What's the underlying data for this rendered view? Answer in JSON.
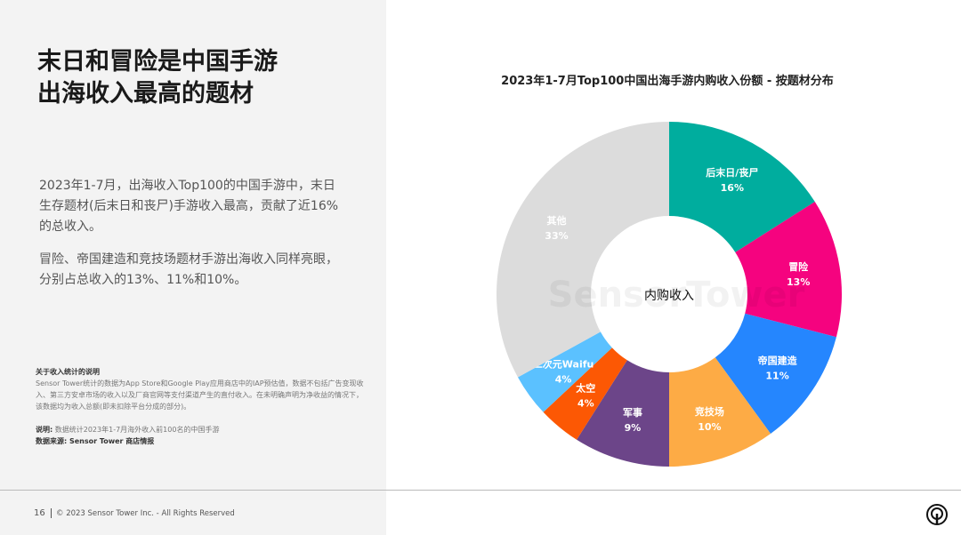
{
  "left_panel": {
    "title_line1": "末日和冒险是中国手游",
    "title_line2": "出海收入最高的题材",
    "paragraph1": "2023年1-7月，出海收入Top100的中国手游中，末日生存题材(后末日和丧尸)手游收入最高，贡献了近16%的总收入。",
    "paragraph2": "冒险、帝国建造和竞技场题材手游出海收入同样亮眼，分别占总收入的13%、11%和10%。",
    "note_heading": "关于收入统计的说明",
    "note_text": "Sensor Tower统计的数据为App Store和Google Play应用商店中的IAP预估值，数据不包括广告变现收入、第三方安卓市场的收入以及厂商官网等支付渠道产生的直付收入。在未明确声明为净收益的情况下，该数据均为收入总额(即未扣除平台分成的部分)。",
    "explain_label": "说明:",
    "explain_text": "数据统计2023年1-7月海外收入前100名的中国手游",
    "source_label": "数据来源: Sensor Tower 商店情报"
  },
  "footer": {
    "page_number": "16",
    "copyright": "© 2023 Sensor Tower Inc. - All Rights Reserved",
    "logo_icon": "sensor-tower-logo-icon"
  },
  "chart_data": {
    "type": "pie",
    "donut": true,
    "title": "2023年1-7月Top100中国出海手游内购收入份额 - 按题材分布",
    "center_label": "内购收入",
    "watermark": "SensorTower",
    "categories": [
      "后末日/丧尸",
      "冒险",
      "帝国建造",
      "竞技场",
      "军事",
      "太空",
      "二次元Waifu",
      "其他"
    ],
    "values": [
      16,
      13,
      11,
      10,
      9,
      4,
      4,
      33
    ],
    "labels": [
      "16%",
      "13%",
      "11%",
      "10%",
      "9%",
      "4%",
      "4%",
      "33%"
    ],
    "colors": [
      "#00ad9e",
      "#f5037f",
      "#2586fe",
      "#fdab45",
      "#6c4589",
      "#fc5804",
      "#5bc1ff",
      "#dcdcdc"
    ]
  }
}
